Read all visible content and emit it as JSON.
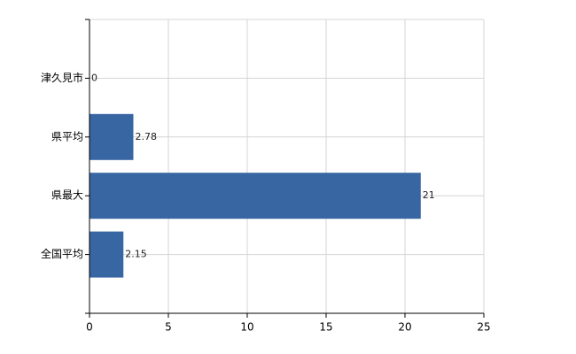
{
  "chart_data": {
    "type": "hbar",
    "categories": [
      "津久見市",
      "県平均",
      "県最大",
      "全国平均"
    ],
    "values": [
      0,
      2.78,
      21,
      2.15
    ],
    "color": "#3866a3",
    "xlim": [
      0,
      25
    ],
    "xticks": [
      0,
      5,
      10,
      15,
      20,
      25
    ],
    "grid": true
  }
}
